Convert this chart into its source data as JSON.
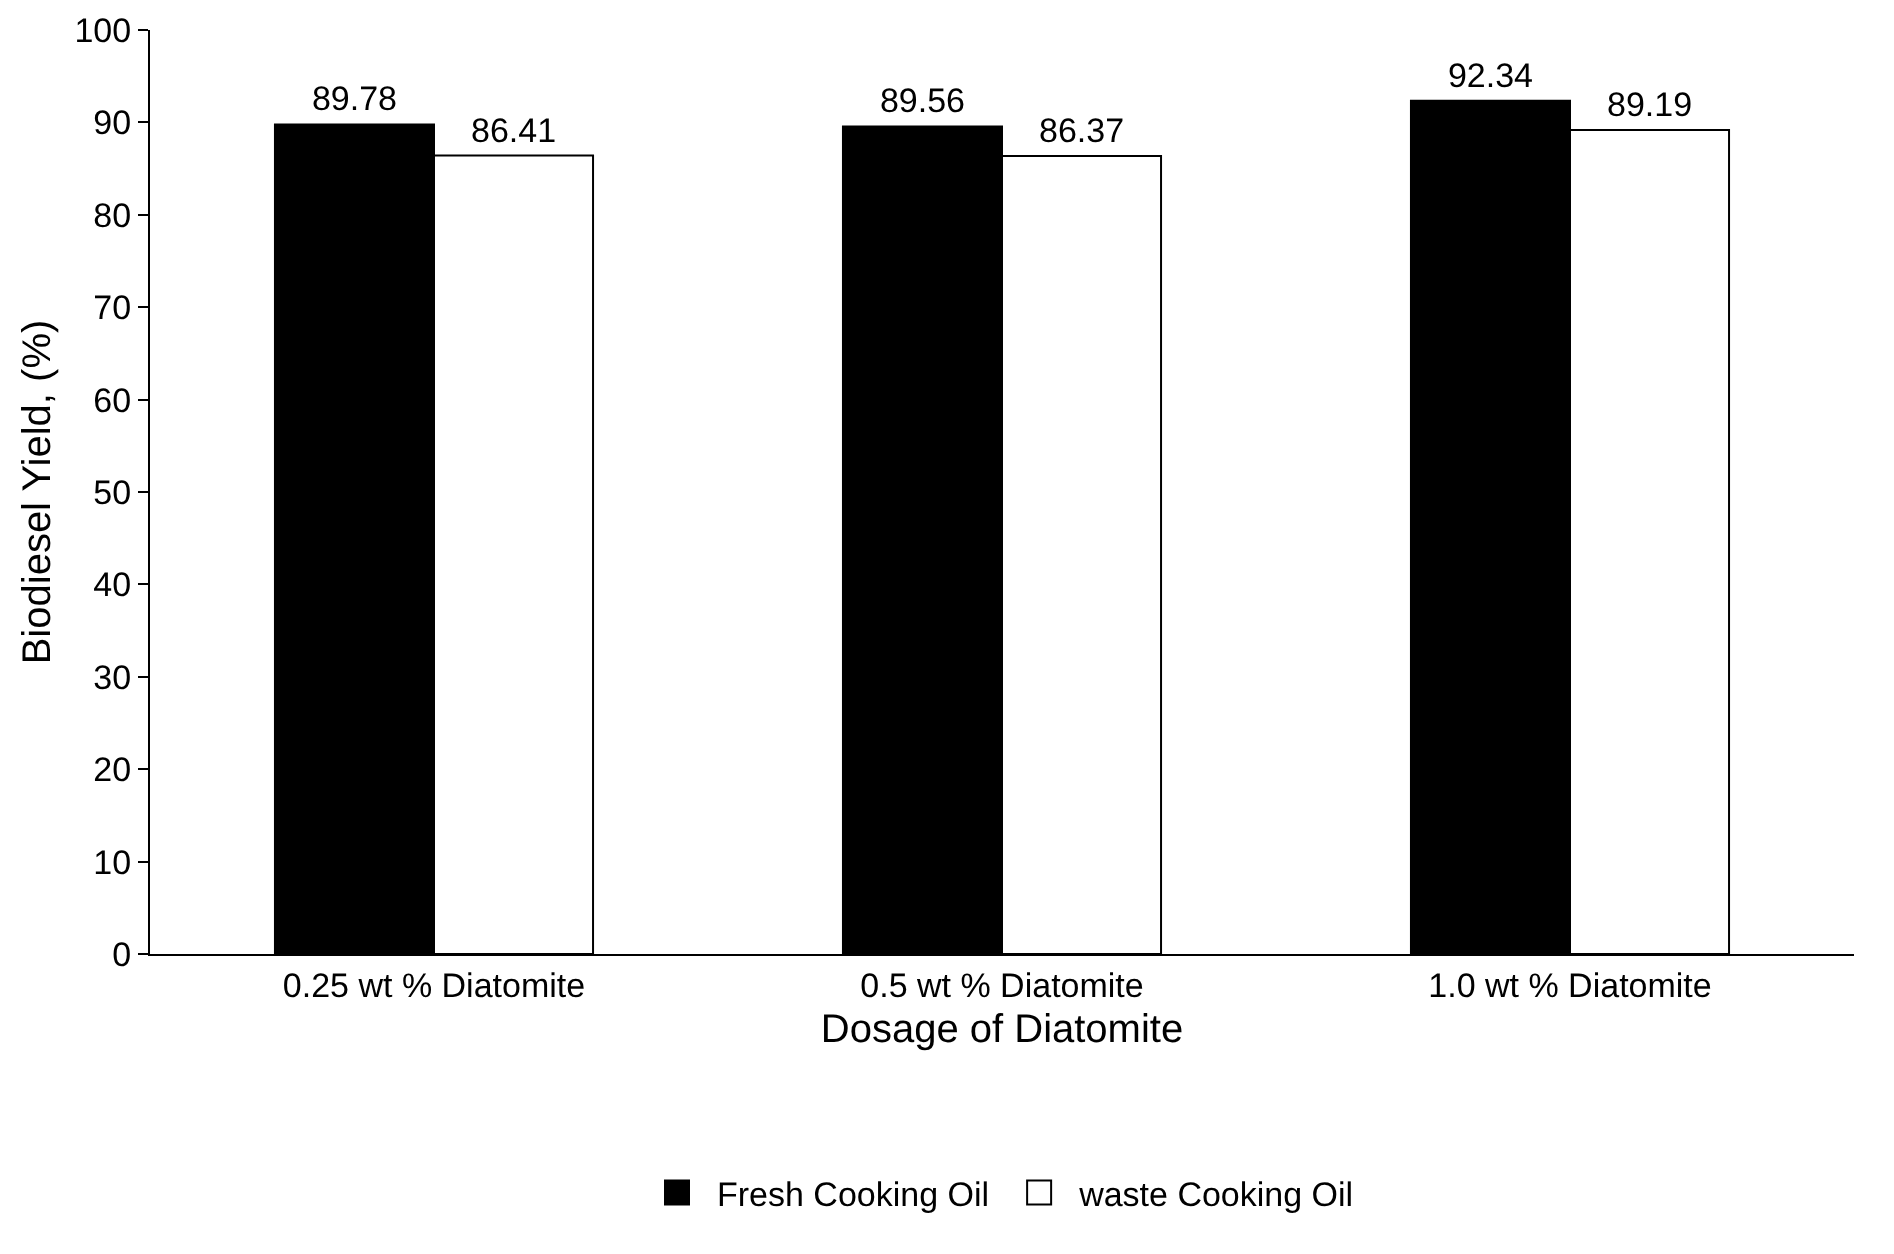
{
  "chart_data": {
    "type": "bar",
    "xlabel": "Dosage of Diatomite",
    "ylabel": "Biodiesel Yield, (%)",
    "categories": [
      "0.25 wt % Diatomite",
      "0.5 wt % Diatomite",
      "1.0 wt % Diatomite"
    ],
    "series": [
      {
        "name": "Fresh Cooking Oil",
        "color": "#000000",
        "values": [
          89.78,
          89.56,
          92.34
        ]
      },
      {
        "name": "waste Cooking Oil",
        "color": "#ffffff",
        "values": [
          86.41,
          86.37,
          89.19
        ]
      }
    ],
    "ylim": [
      0,
      100
    ],
    "yticks": [
      0,
      10,
      20,
      30,
      40,
      50,
      60,
      70,
      80,
      90,
      100
    ],
    "grid": false,
    "legend": "bottom",
    "data_labels": true
  }
}
